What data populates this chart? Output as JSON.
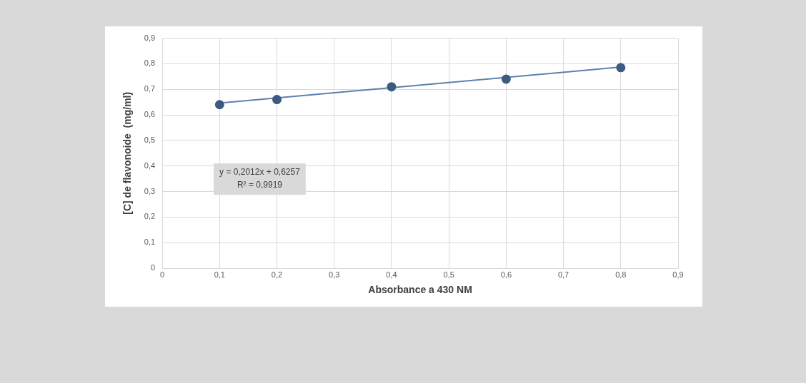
{
  "chart_data": {
    "type": "scatter",
    "xlabel": "Absorbance a 430 NM",
    "ylabel": "[C] de flavonoide  (mg/ml)",
    "xlim": [
      0,
      0.9
    ],
    "ylim": [
      0,
      0.9
    ],
    "xticks": [
      0,
      {
        "value": 0.1,
        "label": "0,1"
      },
      {
        "value": 0.2,
        "label": "0,2"
      },
      {
        "value": 0.3,
        "label": "0,3"
      },
      {
        "value": 0.4,
        "label": "0,4"
      },
      {
        "value": 0.5,
        "label": "0,5"
      },
      {
        "value": 0.6,
        "label": "0,6"
      },
      {
        "value": 0.7,
        "label": "0,7"
      },
      {
        "value": 0.8,
        "label": "0,8"
      },
      {
        "value": 0.9,
        "label": "0,9"
      }
    ],
    "yticks": [
      0,
      {
        "value": 0.1,
        "label": "0,1"
      },
      {
        "value": 0.2,
        "label": "0,2"
      },
      {
        "value": 0.3,
        "label": "0,3"
      },
      {
        "value": 0.4,
        "label": "0,4"
      },
      {
        "value": 0.5,
        "label": "0,5"
      },
      {
        "value": 0.6,
        "label": "0,6"
      },
      {
        "value": 0.7,
        "label": "0,7"
      },
      {
        "value": 0.8,
        "label": "0,8"
      },
      {
        "value": 0.9,
        "label": "0,9"
      }
    ],
    "grid": true,
    "legend": false,
    "annotations": [
      "y = 0,2012x + 0,6257",
      "R² = 0,9919"
    ],
    "series": [
      {
        "type": "scatter",
        "marker": "circle",
        "color": "#3d5a80",
        "x": [
          0.1,
          0.2,
          0.4,
          0.6,
          0.8
        ],
        "values": [
          0.64,
          0.66,
          0.71,
          0.74,
          0.785
        ]
      },
      {
        "type": "line",
        "marker": "none",
        "color": "#5b82ad",
        "x": [
          0.1,
          0.8
        ],
        "values": [
          0.646,
          0.787
        ]
      }
    ]
  }
}
